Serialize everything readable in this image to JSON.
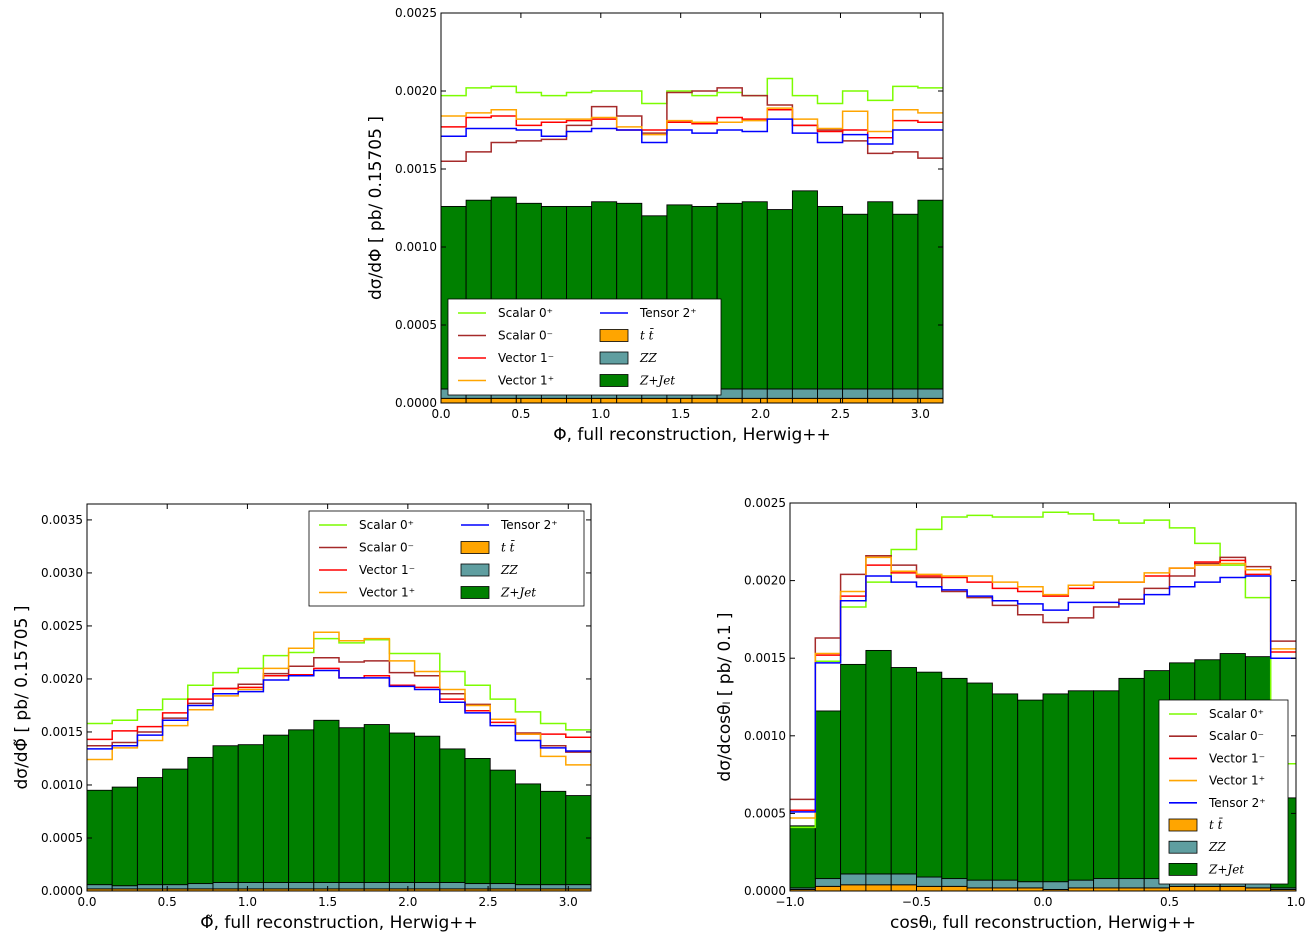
{
  "legend_labels": {
    "s0p": "Scalar 0⁺",
    "s0m": "Scalar 0⁻",
    "v1m": "Vector 1⁻",
    "v1p": "Vector 1⁺",
    "t2p": "Tensor 2⁺",
    "tt": "t t̄",
    "zz": "ZZ",
    "zj": "Z+Jet"
  },
  "colors": {
    "s0p": "#7CFC00",
    "s0m": "#A52A2A",
    "v1m": "#FF0000",
    "v1p": "#FFA500",
    "t2p": "#0000FF",
    "tt": "#FFA500",
    "zz": "#5F9EA0",
    "zj": "#008000"
  },
  "chart_data": [
    {
      "type": "bar",
      "xlabel": "Φ, full reconstruction, Herwig++",
      "ylabel": "dσ/dΦ  [ pb/ 0.15705 ]",
      "xlim": [
        0.0,
        3.1416
      ],
      "ylim": [
        0.0,
        0.0025
      ],
      "xticks": [
        "0.0",
        "0.5",
        "1.0",
        "1.5",
        "2.0",
        "2.5",
        "3.0"
      ],
      "yticks": [
        "0.0000",
        "0.0005",
        "0.0010",
        "0.0015",
        "0.0020",
        "0.0025"
      ],
      "legend_position": "lower-left",
      "legend_columns": 2,
      "bin_edges": [
        0.0,
        0.15708,
        0.31416,
        0.47124,
        0.62832,
        0.7854,
        0.94248,
        1.09956,
        1.25664,
        1.41372,
        1.5708,
        1.72788,
        1.88496,
        2.04204,
        2.19912,
        2.3562,
        2.51328,
        2.67036,
        2.82744,
        2.98452,
        3.1416
      ],
      "stack": [
        {
          "key": "tt",
          "values": [
            3e-05,
            3e-05,
            3e-05,
            3e-05,
            3e-05,
            3e-05,
            3e-05,
            3e-05,
            3e-05,
            3e-05,
            3e-05,
            3e-05,
            3e-05,
            3e-05,
            3e-05,
            3e-05,
            3e-05,
            3e-05,
            3e-05,
            3e-05
          ]
        },
        {
          "key": "zz",
          "values": [
            6e-05,
            6e-05,
            6e-05,
            6e-05,
            6e-05,
            6e-05,
            6e-05,
            6e-05,
            6e-05,
            6e-05,
            6e-05,
            6e-05,
            6e-05,
            6e-05,
            6e-05,
            6e-05,
            6e-05,
            6e-05,
            6e-05,
            6e-05
          ]
        },
        {
          "key": "zj",
          "values": [
            0.00117,
            0.00121,
            0.00123,
            0.00119,
            0.00117,
            0.00117,
            0.0012,
            0.00119,
            0.00111,
            0.00118,
            0.00117,
            0.00119,
            0.0012,
            0.00115,
            0.00127,
            0.00117,
            0.00112,
            0.0012,
            0.00112,
            0.00121
          ]
        }
      ],
      "lines": [
        {
          "key": "s0p",
          "values": [
            0.00197,
            0.00202,
            0.00203,
            0.00199,
            0.00197,
            0.00199,
            0.002,
            0.002,
            0.00192,
            0.002,
            0.00197,
            0.00199,
            0.00197,
            0.00208,
            0.00197,
            0.00192,
            0.002,
            0.00194,
            0.00203,
            0.00202
          ]
        },
        {
          "key": "s0m",
          "values": [
            0.00155,
            0.00161,
            0.00167,
            0.00168,
            0.00169,
            0.00178,
            0.0019,
            0.00184,
            0.00173,
            0.00199,
            0.002,
            0.00202,
            0.00197,
            0.00191,
            0.00178,
            0.00175,
            0.00168,
            0.0016,
            0.00161,
            0.00157
          ]
        },
        {
          "key": "v1m",
          "values": [
            0.00177,
            0.00183,
            0.00184,
            0.00178,
            0.0018,
            0.00181,
            0.00182,
            0.00175,
            0.00175,
            0.0018,
            0.00179,
            0.00183,
            0.00182,
            0.00188,
            0.00178,
            0.00174,
            0.00175,
            0.0017,
            0.00181,
            0.0018
          ]
        },
        {
          "key": "v1p",
          "values": [
            0.00184,
            0.00186,
            0.00188,
            0.00182,
            0.00182,
            0.00182,
            0.00183,
            0.00177,
            0.00172,
            0.00181,
            0.0018,
            0.0018,
            0.00181,
            0.00189,
            0.00182,
            0.00176,
            0.00187,
            0.00174,
            0.00188,
            0.00186
          ]
        },
        {
          "key": "t2p",
          "values": [
            0.00171,
            0.00176,
            0.00176,
            0.00175,
            0.00171,
            0.00174,
            0.00176,
            0.00175,
            0.00167,
            0.00175,
            0.00173,
            0.00175,
            0.00174,
            0.00182,
            0.00173,
            0.00167,
            0.00172,
            0.00166,
            0.00175,
            0.00175
          ]
        }
      ]
    },
    {
      "type": "bar",
      "xlabel": "Φ̃, full reconstruction, Herwig++",
      "ylabel": "dσ/dΦ̃  [ pb/ 0.15705 ]",
      "xlim": [
        0.0,
        3.1416
      ],
      "ylim": [
        0.0,
        0.00365
      ],
      "xticks": [
        "0.0",
        "0.5",
        "1.0",
        "1.5",
        "2.0",
        "2.5",
        "3.0"
      ],
      "yticks": [
        "0.0000",
        "0.0005",
        "0.0010",
        "0.0015",
        "0.0020",
        "0.0025",
        "0.0030",
        "0.0035"
      ],
      "legend_position": "top-right",
      "legend_columns": 2,
      "bin_edges": [
        0.0,
        0.15708,
        0.31416,
        0.47124,
        0.62832,
        0.7854,
        0.94248,
        1.09956,
        1.25664,
        1.41372,
        1.5708,
        1.72788,
        1.88496,
        2.04204,
        2.19912,
        2.3562,
        2.51328,
        2.67036,
        2.82744,
        2.98452,
        3.1416
      ],
      "stack": [
        {
          "key": "tt",
          "values": [
            2e-05,
            2e-05,
            2e-05,
            2e-05,
            2e-05,
            2e-05,
            2e-05,
            2e-05,
            2e-05,
            2e-05,
            2e-05,
            2e-05,
            2e-05,
            2e-05,
            2e-05,
            2e-05,
            2e-05,
            2e-05,
            2e-05,
            2e-05
          ]
        },
        {
          "key": "zz",
          "values": [
            4e-05,
            3e-05,
            4e-05,
            4e-05,
            5e-05,
            6e-05,
            6e-05,
            6e-05,
            6e-05,
            6e-05,
            6e-05,
            6e-05,
            6e-05,
            6e-05,
            6e-05,
            5e-05,
            5e-05,
            4e-05,
            4e-05,
            4e-05
          ]
        },
        {
          "key": "zj",
          "values": [
            0.00089,
            0.00093,
            0.00101,
            0.00109,
            0.00119,
            0.00129,
            0.0013,
            0.00139,
            0.00144,
            0.00153,
            0.00146,
            0.00149,
            0.00141,
            0.00138,
            0.00126,
            0.00118,
            0.00107,
            0.00095,
            0.00088,
            0.00084
          ]
        }
      ],
      "lines": [
        {
          "key": "s0p",
          "values": [
            0.00158,
            0.00161,
            0.00171,
            0.00181,
            0.00194,
            0.00206,
            0.0021,
            0.00222,
            0.00225,
            0.00238,
            0.00234,
            0.00237,
            0.00224,
            0.00224,
            0.00207,
            0.00194,
            0.00181,
            0.00169,
            0.00158,
            0.00152
          ]
        },
        {
          "key": "s0m",
          "values": [
            0.00137,
            0.0014,
            0.0015,
            0.00163,
            0.00177,
            0.00191,
            0.00195,
            0.00205,
            0.00212,
            0.0022,
            0.00216,
            0.00217,
            0.00206,
            0.00203,
            0.00186,
            0.00176,
            0.00162,
            0.00149,
            0.00137,
            0.00131
          ]
        },
        {
          "key": "v1m",
          "values": [
            0.00143,
            0.00151,
            0.00155,
            0.00168,
            0.00181,
            0.00191,
            0.00192,
            0.00203,
            0.00204,
            0.0021,
            0.00201,
            0.00203,
            0.00194,
            0.00192,
            0.00181,
            0.0017,
            0.00159,
            0.00148,
            0.00148,
            0.00145
          ]
        },
        {
          "key": "v1p",
          "values": [
            0.00124,
            0.00135,
            0.00142,
            0.00156,
            0.00171,
            0.00184,
            0.0019,
            0.0021,
            0.00229,
            0.00244,
            0.00236,
            0.00238,
            0.00217,
            0.00207,
            0.0019,
            0.00175,
            0.00162,
            0.00148,
            0.00127,
            0.00119
          ]
        },
        {
          "key": "t2p",
          "values": [
            0.00134,
            0.00137,
            0.00147,
            0.00161,
            0.00175,
            0.00186,
            0.00188,
            0.00199,
            0.00203,
            0.00208,
            0.00201,
            0.00201,
            0.00193,
            0.0019,
            0.00178,
            0.00168,
            0.00156,
            0.00142,
            0.00135,
            0.00132
          ]
        }
      ]
    },
    {
      "type": "bar",
      "xlabel": "cosθₗ, full reconstruction, Herwig++",
      "ylabel": "dσ/dcosθₗ  [ pb/ 0.1 ]",
      "xlim": [
        -1.0,
        1.0
      ],
      "ylim": [
        0.0,
        0.0025
      ],
      "xticks": [
        "−1.0",
        "−0.5",
        "0.0",
        "0.5",
        "1.0"
      ],
      "yticks": [
        "0.0000",
        "0.0005",
        "0.0010",
        "0.0015",
        "0.0020",
        "0.0025"
      ],
      "legend_position": "lower-right",
      "legend_columns": 1,
      "bin_edges": [
        -1.0,
        -0.9,
        -0.8,
        -0.7,
        -0.6,
        -0.5,
        -0.4,
        -0.3,
        -0.2,
        -0.1,
        0.0,
        0.1,
        0.2,
        0.3,
        0.4,
        0.5,
        0.6,
        0.7,
        0.8,
        0.9,
        1.0
      ],
      "stack": [
        {
          "key": "tt",
          "values": [
            1e-05,
            3e-05,
            4e-05,
            4e-05,
            4e-05,
            3e-05,
            3e-05,
            2e-05,
            2e-05,
            2e-05,
            1e-05,
            2e-05,
            2e-05,
            2e-05,
            2e-05,
            3e-05,
            3e-05,
            3e-05,
            2e-05,
            1e-05
          ]
        },
        {
          "key": "zz",
          "values": [
            1e-05,
            5e-05,
            7e-05,
            7e-05,
            7e-05,
            6e-05,
            5e-05,
            5e-05,
            5e-05,
            4e-05,
            5e-05,
            5e-05,
            6e-05,
            6e-05,
            6e-05,
            6e-05,
            5e-05,
            4e-05,
            4e-05,
            1e-05
          ]
        },
        {
          "key": "zj",
          "values": [
            0.0004,
            0.00108,
            0.00135,
            0.00144,
            0.00133,
            0.00132,
            0.00129,
            0.00127,
            0.0012,
            0.00117,
            0.00121,
            0.00122,
            0.00121,
            0.00129,
            0.00134,
            0.00138,
            0.00141,
            0.00146,
            0.00145,
            0.00058
          ]
        }
      ],
      "lines": [
        {
          "key": "s0p",
          "values": [
            0.00041,
            0.00148,
            0.00183,
            0.00199,
            0.0022,
            0.00233,
            0.00241,
            0.00242,
            0.00241,
            0.00241,
            0.00244,
            0.00243,
            0.00239,
            0.00237,
            0.00239,
            0.00234,
            0.00224,
            0.0021,
            0.00189,
            0.00082
          ]
        },
        {
          "key": "s0m",
          "values": [
            0.00059,
            0.00163,
            0.00204,
            0.00216,
            0.0021,
            0.00202,
            0.00193,
            0.00189,
            0.00184,
            0.00178,
            0.00173,
            0.00176,
            0.00183,
            0.00188,
            0.00195,
            0.00203,
            0.00211,
            0.00215,
            0.00209,
            0.00161
          ]
        },
        {
          "key": "v1m",
          "values": [
            0.00052,
            0.00152,
            0.0019,
            0.0021,
            0.00205,
            0.00203,
            0.00202,
            0.00199,
            0.00195,
            0.00193,
            0.0019,
            0.00195,
            0.00199,
            0.00199,
            0.00203,
            0.00208,
            0.00212,
            0.00213,
            0.00204,
            0.00154
          ]
        },
        {
          "key": "v1p",
          "values": [
            0.00047,
            0.00153,
            0.00193,
            0.00215,
            0.00206,
            0.00204,
            0.00203,
            0.00203,
            0.00199,
            0.00196,
            0.00191,
            0.00197,
            0.00199,
            0.00199,
            0.00205,
            0.00208,
            0.0021,
            0.00211,
            0.00207,
            0.00156
          ]
        },
        {
          "key": "t2p",
          "values": [
            0.00051,
            0.00147,
            0.00187,
            0.00203,
            0.00199,
            0.00196,
            0.00194,
            0.0019,
            0.00187,
            0.00185,
            0.00181,
            0.00186,
            0.00186,
            0.00185,
            0.00191,
            0.00196,
            0.00199,
            0.00202,
            0.00203,
            0.0015
          ]
        }
      ]
    }
  ]
}
